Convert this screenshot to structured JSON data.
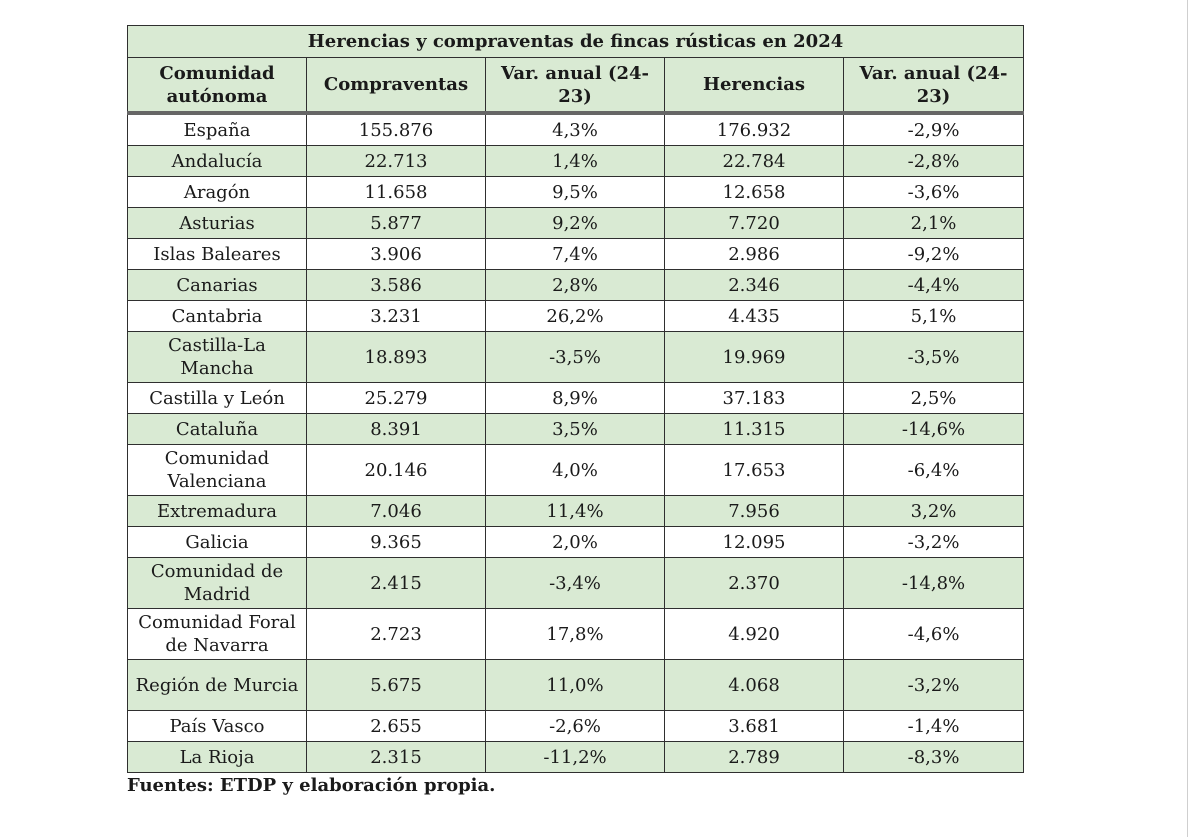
{
  "table": {
    "title": "Herencias y compraventas de fincas rústicas en 2024",
    "headers": [
      "Comunidad autónoma",
      "Compraventas",
      "Var. anual (24-23)",
      "Herencias",
      "Var. anual (24-23)"
    ],
    "rows": [
      {
        "region": "España",
        "compraventas": "155.876",
        "var_compraventas": "4,3%",
        "herencias": "176.932",
        "var_herencias": "-2,9%"
      },
      {
        "region": "Andalucía",
        "compraventas": "22.713",
        "var_compraventas": "1,4%",
        "herencias": "22.784",
        "var_herencias": "-2,8%"
      },
      {
        "region": "Aragón",
        "compraventas": "11.658",
        "var_compraventas": "9,5%",
        "herencias": "12.658",
        "var_herencias": "-3,6%"
      },
      {
        "region": "Asturias",
        "compraventas": "5.877",
        "var_compraventas": "9,2%",
        "herencias": "7.720",
        "var_herencias": "2,1%"
      },
      {
        "region": "Islas Baleares",
        "compraventas": "3.906",
        "var_compraventas": "7,4%",
        "herencias": "2.986",
        "var_herencias": "-9,2%"
      },
      {
        "region": "Canarias",
        "compraventas": "3.586",
        "var_compraventas": "2,8%",
        "herencias": "2.346",
        "var_herencias": "-4,4%"
      },
      {
        "region": "Cantabria",
        "compraventas": "3.231",
        "var_compraventas": "26,2%",
        "herencias": "4.435",
        "var_herencias": "5,1%"
      },
      {
        "region": "Castilla-La Mancha",
        "compraventas": "18.893",
        "var_compraventas": "-3,5%",
        "herencias": "19.969",
        "var_herencias": "-3,5%"
      },
      {
        "region": "Castilla y León",
        "compraventas": "25.279",
        "var_compraventas": "8,9%",
        "herencias": "37.183",
        "var_herencias": "2,5%"
      },
      {
        "region": "Cataluña",
        "compraventas": "8.391",
        "var_compraventas": "3,5%",
        "herencias": "11.315",
        "var_herencias": "-14,6%"
      },
      {
        "region": "Comunidad Valenciana",
        "compraventas": "20.146",
        "var_compraventas": "4,0%",
        "herencias": "17.653",
        "var_herencias": "-6,4%"
      },
      {
        "region": "Extremadura",
        "compraventas": "7.046",
        "var_compraventas": "11,4%",
        "herencias": "7.956",
        "var_herencias": "3,2%"
      },
      {
        "region": "Galicia",
        "compraventas": "9.365",
        "var_compraventas": "2,0%",
        "herencias": "12.095",
        "var_herencias": "-3,2%"
      },
      {
        "region": "Comunidad de Madrid",
        "compraventas": "2.415",
        "var_compraventas": "-3,4%",
        "herencias": "2.370",
        "var_herencias": "-14,8%"
      },
      {
        "region": "Comunidad Foral de Navarra",
        "compraventas": "2.723",
        "var_compraventas": "17,8%",
        "herencias": "4.920",
        "var_herencias": "-4,6%"
      },
      {
        "region": "Región de Murcia",
        "compraventas": "5.675",
        "var_compraventas": "11,0%",
        "herencias": "4.068",
        "var_herencias": "-3,2%"
      },
      {
        "region": "País Vasco",
        "compraventas": "2.655",
        "var_compraventas": "-2,6%",
        "herencias": "3.681",
        "var_herencias": "-1,4%"
      },
      {
        "region": "La Rioja",
        "compraventas": "2.315",
        "var_compraventas": "-11,2%",
        "herencias": "2.789",
        "var_herencias": "-8,3%"
      }
    ]
  },
  "source": "Fuentes: ETDP y elaboración propia.",
  "colors": {
    "header_fill": "#d9ead3",
    "border": "#2f2f2f"
  }
}
